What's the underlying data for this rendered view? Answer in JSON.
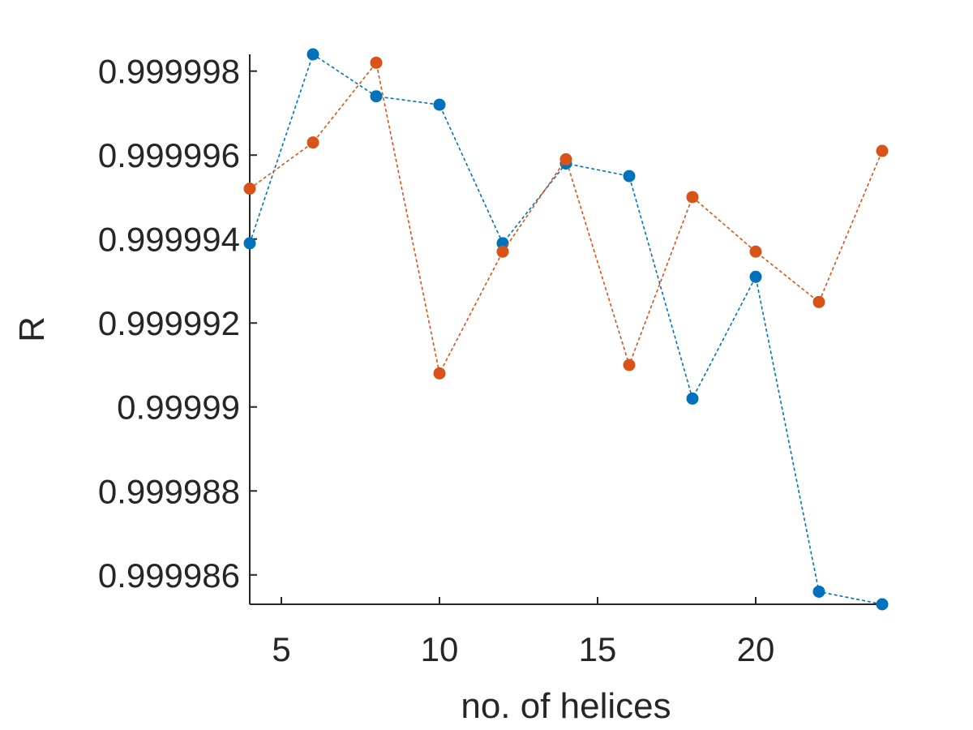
{
  "chart_data": {
    "type": "line",
    "xlabel": "no. of helices",
    "ylabel": "R",
    "xlim": [
      4,
      24
    ],
    "ylim": [
      0.9999853,
      0.9999984
    ],
    "xticks": [
      5,
      10,
      15,
      20
    ],
    "xtick_labels": [
      "5",
      "10",
      "15",
      "20"
    ],
    "yticks": [
      0.999986,
      0.999988,
      0.99999,
      0.999992,
      0.999994,
      0.999996,
      0.999998
    ],
    "ytick_labels": [
      "0.999986",
      "0.999988",
      "0.99999",
      "0.999992",
      "0.999994",
      "0.999996",
      "0.999998"
    ],
    "grid": false,
    "line_style": "dashed",
    "marker": "filled-circle",
    "x": [
      4,
      6,
      8,
      10,
      12,
      14,
      16,
      18,
      20,
      22,
      24
    ],
    "series": [
      {
        "color": "#0072BD",
        "values": [
          0.9999939,
          0.9999984,
          0.9999974,
          0.9999972,
          0.9999939,
          0.9999958,
          0.9999955,
          0.9999902,
          0.9999931,
          0.9999856,
          0.9999853
        ]
      },
      {
        "color": "#D95319",
        "values": [
          0.9999952,
          0.9999963,
          0.9999982,
          0.9999908,
          0.9999937,
          0.9999959,
          0.999991,
          0.999995,
          0.9999937,
          0.9999925,
          0.9999961
        ]
      }
    ]
  }
}
